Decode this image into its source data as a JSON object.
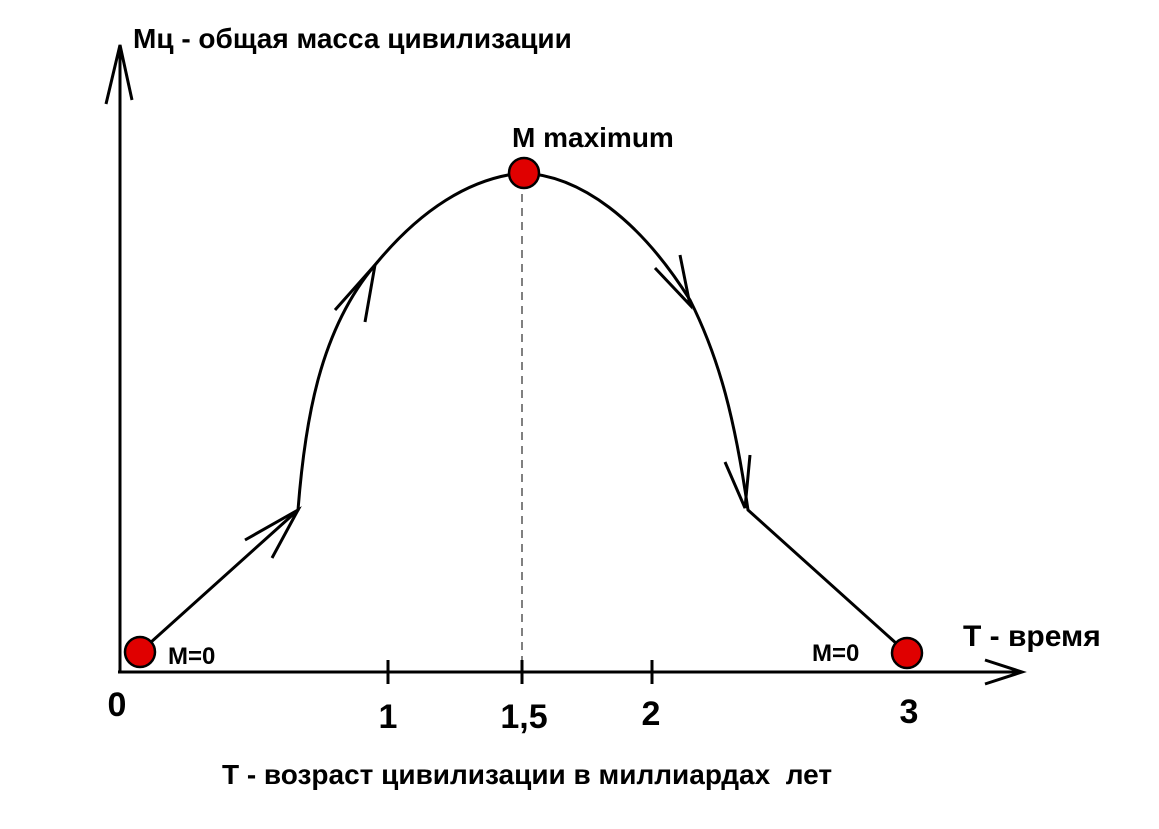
{
  "y_axis_label": "Мц - общая масса цивилизации",
  "x_axis_label": "T - время",
  "caption": "Т - возраст цивилизации в миллиардах  лет",
  "peak_label": "M maximum",
  "start_label": "M=0",
  "end_label": "M=0",
  "x_ticks": [
    "0",
    "1",
    "1,5",
    "2",
    "3"
  ]
}
